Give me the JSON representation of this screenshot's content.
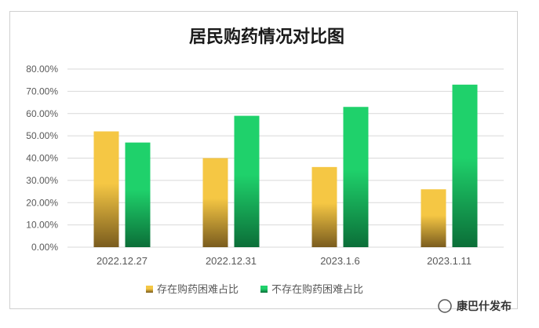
{
  "chart_data": {
    "type": "bar",
    "title": "居民购药情况对比图",
    "categories": [
      "2022.12.27",
      "2022.12.31",
      "2023.1.6",
      "2023.1.11"
    ],
    "series": [
      {
        "name": "存在购药困难占比",
        "values": [
          0.52,
          0.4,
          0.36,
          0.26
        ],
        "color": "#f5c744",
        "color_bottom": "#7a5c1e"
      },
      {
        "name": "不存在购药困难占比",
        "values": [
          0.47,
          0.59,
          0.63,
          0.73
        ],
        "color": "#1fd16b",
        "color_bottom": "#0b6e38"
      }
    ],
    "ylim": [
      0,
      0.8
    ],
    "yticks": [
      "0.00%",
      "10.00%",
      "20.00%",
      "30.00%",
      "40.00%",
      "50.00%",
      "60.00%",
      "70.00%",
      "80.00%"
    ],
    "grid": true,
    "legend_position": "bottom"
  },
  "watermark": {
    "label": "康巴什发布"
  }
}
